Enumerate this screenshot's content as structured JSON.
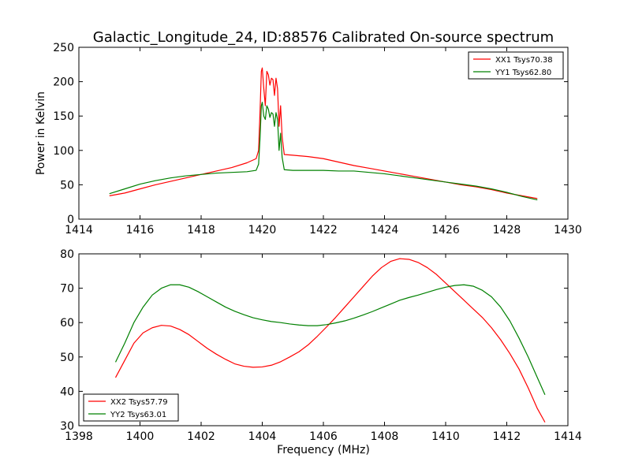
{
  "figure": {
    "title": "Galactic_Longitude_24, ID:88576 Calibrated On-source spectrum"
  },
  "chart_data": [
    {
      "type": "line",
      "ylabel": "Power in Kelvin",
      "xlabel": "",
      "xlim": [
        1414,
        1430
      ],
      "ylim": [
        0,
        250
      ],
      "xticks": [
        "1414",
        "1416",
        "1418",
        "1420",
        "1422",
        "1424",
        "1426",
        "1428",
        "1430"
      ],
      "yticks": [
        "0",
        "50",
        "100",
        "150",
        "200",
        "250"
      ],
      "grid": false,
      "legend": "top-right",
      "series": [
        {
          "name": "XX1 Tsys70.38",
          "color": "#ff0000",
          "points": [
            [
              1415.0,
              34
            ],
            [
              1415.5,
              38
            ],
            [
              1416.0,
              44
            ],
            [
              1416.5,
              50
            ],
            [
              1417.0,
              55
            ],
            [
              1417.5,
              60
            ],
            [
              1418.0,
              65
            ],
            [
              1418.5,
              70
            ],
            [
              1419.0,
              75
            ],
            [
              1419.5,
              82
            ],
            [
              1419.8,
              88
            ],
            [
              1419.88,
              100
            ],
            [
              1419.93,
              160
            ],
            [
              1419.97,
              215
            ],
            [
              1420.0,
              220
            ],
            [
              1420.05,
              190
            ],
            [
              1420.1,
              165
            ],
            [
              1420.15,
              215
            ],
            [
              1420.2,
              210
            ],
            [
              1420.25,
              195
            ],
            [
              1420.3,
              205
            ],
            [
              1420.35,
              203
            ],
            [
              1420.4,
              180
            ],
            [
              1420.45,
              205
            ],
            [
              1420.5,
              190
            ],
            [
              1420.55,
              135
            ],
            [
              1420.6,
              165
            ],
            [
              1420.65,
              120
            ],
            [
              1420.72,
              94
            ],
            [
              1421.0,
              93
            ],
            [
              1421.5,
              91
            ],
            [
              1422.0,
              88
            ],
            [
              1422.5,
              83
            ],
            [
              1423.0,
              78
            ],
            [
              1423.5,
              74
            ],
            [
              1424.0,
              70
            ],
            [
              1424.5,
              66
            ],
            [
              1425.0,
              62
            ],
            [
              1425.5,
              58
            ],
            [
              1426.0,
              54
            ],
            [
              1426.5,
              50
            ],
            [
              1427.0,
              47
            ],
            [
              1427.5,
              43
            ],
            [
              1428.0,
              38
            ],
            [
              1428.5,
              34
            ],
            [
              1429.0,
              30
            ]
          ]
        },
        {
          "name": "YY1 Tsys62.80",
          "color": "#008000",
          "points": [
            [
              1415.0,
              37
            ],
            [
              1415.5,
              44
            ],
            [
              1416.0,
              51
            ],
            [
              1416.5,
              56
            ],
            [
              1417.0,
              60
            ],
            [
              1417.5,
              63
            ],
            [
              1418.0,
              65
            ],
            [
              1418.5,
              67
            ],
            [
              1419.0,
              68
            ],
            [
              1419.5,
              69
            ],
            [
              1419.8,
              71
            ],
            [
              1419.88,
              80
            ],
            [
              1419.93,
              120
            ],
            [
              1419.97,
              165
            ],
            [
              1420.0,
              170
            ],
            [
              1420.05,
              150
            ],
            [
              1420.1,
              145
            ],
            [
              1420.15,
              165
            ],
            [
              1420.2,
              160
            ],
            [
              1420.25,
              148
            ],
            [
              1420.3,
              155
            ],
            [
              1420.35,
              153
            ],
            [
              1420.4,
              135
            ],
            [
              1420.45,
              155
            ],
            [
              1420.5,
              145
            ],
            [
              1420.55,
              100
            ],
            [
              1420.6,
              125
            ],
            [
              1420.65,
              90
            ],
            [
              1420.72,
              72
            ],
            [
              1421.0,
              71
            ],
            [
              1421.5,
              71
            ],
            [
              1422.0,
              71
            ],
            [
              1422.5,
              70
            ],
            [
              1423.0,
              70
            ],
            [
              1423.5,
              68
            ],
            [
              1424.0,
              66
            ],
            [
              1424.5,
              63
            ],
            [
              1425.0,
              60
            ],
            [
              1425.5,
              57
            ],
            [
              1426.0,
              54
            ],
            [
              1426.5,
              51
            ],
            [
              1427.0,
              48
            ],
            [
              1427.5,
              44
            ],
            [
              1428.0,
              39
            ],
            [
              1428.5,
              33
            ],
            [
              1429.0,
              28
            ]
          ]
        }
      ]
    },
    {
      "type": "line",
      "xlabel": "Frequency (MHz)",
      "ylabel": "",
      "xlim": [
        1398,
        1414
      ],
      "ylim": [
        30,
        80
      ],
      "xticks": [
        "1398",
        "1400",
        "1402",
        "1404",
        "1406",
        "1408",
        "1410",
        "1412",
        "1414"
      ],
      "yticks": [
        "30",
        "40",
        "50",
        "60",
        "70",
        "80"
      ],
      "grid": false,
      "legend": "bottom-left",
      "series": [
        {
          "name": "XX2 Tsys57.79",
          "color": "#ff0000",
          "points": [
            [
              1399.2,
              44
            ],
            [
              1399.5,
              49
            ],
            [
              1399.8,
              54
            ],
            [
              1400.1,
              57
            ],
            [
              1400.4,
              58.5
            ],
            [
              1400.7,
              59.2
            ],
            [
              1401.0,
              59
            ],
            [
              1401.3,
              58
            ],
            [
              1401.6,
              56.5
            ],
            [
              1401.9,
              54.5
            ],
            [
              1402.2,
              52.5
            ],
            [
              1402.5,
              50.8
            ],
            [
              1402.8,
              49.3
            ],
            [
              1403.1,
              48
            ],
            [
              1403.4,
              47.3
            ],
            [
              1403.7,
              47
            ],
            [
              1404.0,
              47.1
            ],
            [
              1404.3,
              47.6
            ],
            [
              1404.6,
              48.6
            ],
            [
              1404.9,
              50
            ],
            [
              1405.2,
              51.5
            ],
            [
              1405.5,
              53.5
            ],
            [
              1405.8,
              56
            ],
            [
              1406.1,
              58.7
            ],
            [
              1406.4,
              61.5
            ],
            [
              1406.7,
              64.5
            ],
            [
              1407.0,
              67.5
            ],
            [
              1407.3,
              70.5
            ],
            [
              1407.6,
              73.5
            ],
            [
              1407.9,
              76
            ],
            [
              1408.2,
              77.8
            ],
            [
              1408.5,
              78.6
            ],
            [
              1408.8,
              78.4
            ],
            [
              1409.1,
              77.5
            ],
            [
              1409.4,
              76
            ],
            [
              1409.7,
              74
            ],
            [
              1410.0,
              71.5
            ],
            [
              1410.3,
              69
            ],
            [
              1410.6,
              66.5
            ],
            [
              1410.9,
              64
            ],
            [
              1411.2,
              61.5
            ],
            [
              1411.5,
              58.5
            ],
            [
              1411.8,
              55
            ],
            [
              1412.1,
              51
            ],
            [
              1412.4,
              46.5
            ],
            [
              1412.7,
              41
            ],
            [
              1413.0,
              35
            ],
            [
              1413.25,
              31
            ]
          ]
        },
        {
          "name": "YY2 Tsys63.01",
          "color": "#008000",
          "points": [
            [
              1399.2,
              48.5
            ],
            [
              1399.5,
              54
            ],
            [
              1399.8,
              60
            ],
            [
              1400.1,
              64.5
            ],
            [
              1400.4,
              68
            ],
            [
              1400.7,
              70
            ],
            [
              1401.0,
              71
            ],
            [
              1401.3,
              71
            ],
            [
              1401.6,
              70.3
            ],
            [
              1401.9,
              69
            ],
            [
              1402.2,
              67.5
            ],
            [
              1402.5,
              66
            ],
            [
              1402.8,
              64.5
            ],
            [
              1403.1,
              63.3
            ],
            [
              1403.4,
              62.3
            ],
            [
              1403.7,
              61.4
            ],
            [
              1404.0,
              60.8
            ],
            [
              1404.3,
              60.3
            ],
            [
              1404.6,
              60
            ],
            [
              1404.9,
              59.6
            ],
            [
              1405.2,
              59.3
            ],
            [
              1405.5,
              59.1
            ],
            [
              1405.8,
              59.1
            ],
            [
              1406.1,
              59.4
            ],
            [
              1406.4,
              59.9
            ],
            [
              1406.7,
              60.5
            ],
            [
              1407.0,
              61.3
            ],
            [
              1407.3,
              62.2
            ],
            [
              1407.6,
              63.2
            ],
            [
              1407.9,
              64.3
            ],
            [
              1408.2,
              65.4
            ],
            [
              1408.5,
              66.5
            ],
            [
              1408.8,
              67.3
            ],
            [
              1409.1,
              68
            ],
            [
              1409.4,
              68.8
            ],
            [
              1409.7,
              69.6
            ],
            [
              1410.0,
              70.3
            ],
            [
              1410.3,
              70.8
            ],
            [
              1410.6,
              71
            ],
            [
              1410.9,
              70.6
            ],
            [
              1411.2,
              69.4
            ],
            [
              1411.5,
              67.5
            ],
            [
              1411.8,
              64.5
            ],
            [
              1412.1,
              60.5
            ],
            [
              1412.4,
              55.5
            ],
            [
              1412.7,
              50
            ],
            [
              1413.0,
              44
            ],
            [
              1413.25,
              39
            ]
          ]
        }
      ]
    }
  ]
}
